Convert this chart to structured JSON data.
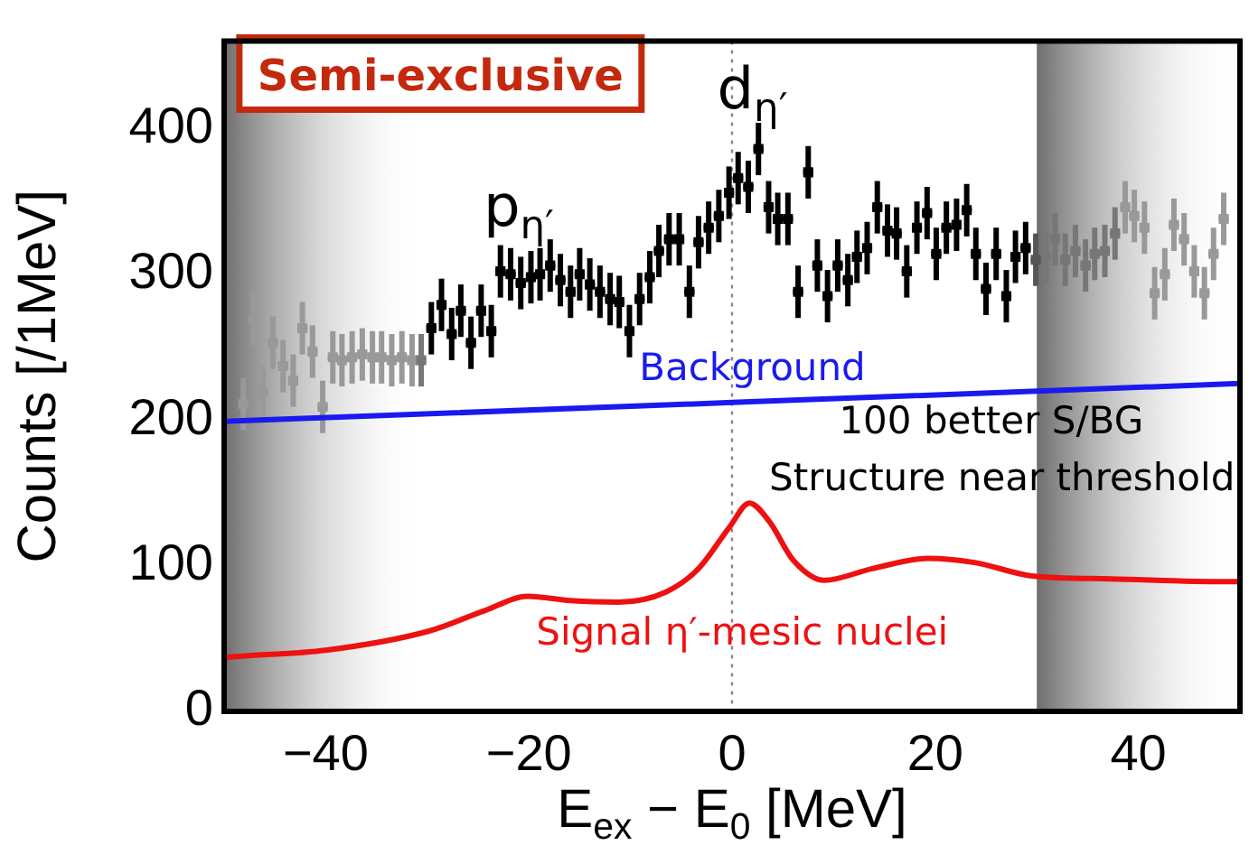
{
  "chart_data": {
    "type": "scatter",
    "xlabel": "E$_{ex}$ − E$_{0}$ [MeV]",
    "ylabel": "Counts [/1MeV]",
    "xlim": [
      -50,
      50
    ],
    "xticks": [
      -40,
      -20,
      0,
      20,
      40
    ],
    "ylim": [
      0,
      460
    ],
    "yticks": [
      0,
      100,
      200,
      300,
      400
    ],
    "grid": false,
    "legend": false,
    "series": [
      {
        "type": "scatter",
        "marker": "square",
        "x": [
          -48.1,
          -47.1,
          -46.2,
          -45.2,
          -44.2,
          -43.2,
          -42.3,
          -41.3,
          -40.3,
          -39.3,
          -38.4,
          -37.4,
          -36.4,
          -35.4,
          -34.5,
          -33.5,
          -32.5,
          -31.5,
          -30.6,
          -29.6,
          -28.6,
          -27.6,
          -26.7,
          -25.7,
          -24.7,
          -23.7,
          -22.8,
          -21.8,
          -20.8,
          -19.8,
          -18.9,
          -17.9,
          -16.9,
          -15.9,
          -15.0,
          -14.0,
          -13.0,
          -12.0,
          -11.1,
          -10.1,
          -9.1,
          -8.1,
          -7.2,
          -6.2,
          -5.2,
          -4.2,
          -3.3,
          -2.3,
          -1.3,
          -0.3,
          0.6,
          1.6,
          2.6,
          3.6,
          4.5,
          5.5,
          6.5,
          7.5,
          8.4,
          9.4,
          10.4,
          11.4,
          12.3,
          13.3,
          14.3,
          15.3,
          16.2,
          17.2,
          18.2,
          19.2,
          20.1,
          21.1,
          22.1,
          23.1,
          24.0,
          25.0,
          26.0,
          27.0,
          27.9,
          28.9,
          29.9,
          30.9,
          31.8,
          32.8,
          33.8,
          34.8,
          35.7,
          36.7,
          37.7,
          38.7,
          39.6,
          40.6,
          41.6,
          42.6,
          43.5,
          44.5,
          45.5,
          46.5,
          47.4,
          48.4
        ],
        "values": [
          211,
          269,
          219,
          253,
          237,
          227,
          263,
          247,
          209,
          243,
          241,
          243,
          245,
          243,
          243,
          241,
          243,
          241,
          241,
          263,
          279,
          259,
          275,
          253,
          275,
          261,
          302,
          300,
          294,
          298,
          300,
          306,
          296,
          288,
          300,
          293,
          288,
          283,
          281,
          261,
          283,
          298,
          316,
          324,
          324,
          288,
          322,
          332,
          340,
          356,
          366,
          360,
          386,
          346,
          338,
          338,
          288,
          370,
          306,
          285,
          306,
          296,
          312,
          318,
          346,
          330,
          328,
          302,
          332,
          342,
          314,
          332,
          334,
          344,
          314,
          290,
          314,
          285,
          312,
          318,
          310,
          312,
          324,
          310,
          316,
          306,
          314,
          316,
          328,
          346,
          340,
          332,
          287,
          300,
          334,
          324,
          302,
          287,
          314,
          338
        ],
        "errors": [
          18,
          18,
          18,
          18,
          18,
          18,
          18,
          18,
          18,
          18,
          18,
          18,
          18,
          18,
          18,
          18,
          18,
          18,
          18,
          18,
          18,
          18,
          18,
          18,
          18,
          18,
          18,
          18,
          18,
          18,
          18,
          18,
          18,
          18,
          18,
          18,
          18,
          18,
          18,
          18,
          18,
          18,
          18,
          18,
          18,
          18,
          18,
          18,
          18,
          18,
          18,
          18,
          18,
          18,
          18,
          18,
          18,
          18,
          18,
          18,
          18,
          18,
          18,
          18,
          18,
          18,
          18,
          18,
          18,
          18,
          18,
          18,
          18,
          18,
          18,
          18,
          18,
          18,
          18,
          18,
          18,
          18,
          18,
          18,
          18,
          18,
          18,
          18,
          18,
          18,
          18,
          18,
          18,
          18,
          18,
          18,
          18,
          18,
          18,
          18
        ],
        "xerrors": [
          0.5,
          0.5,
          0.5,
          0.5,
          0.5,
          0.5,
          0.5,
          0.5,
          0.5,
          0.5,
          0.5,
          0.5,
          0.5,
          0.5,
          0.5,
          0.5,
          0.5,
          0.5,
          0.5,
          0.5,
          0.5,
          0.5,
          0.5,
          0.5,
          0.5,
          0.5,
          0.5,
          0.5,
          0.5,
          0.5,
          0.5,
          0.5,
          0.5,
          0.5,
          0.5,
          0.5,
          0.5,
          0.5,
          0.5,
          0.5,
          0.5,
          0.5,
          0.5,
          0.5,
          0.5,
          0.5,
          0.5,
          0.5,
          0.5,
          0.5,
          0.5,
          0.5,
          0.5,
          0.5,
          0.5,
          0.5,
          0.5,
          0.5,
          0.5,
          0.5,
          0.5,
          0.5,
          0.5,
          0.5,
          0.5,
          0.5,
          0.5,
          0.5,
          0.5,
          0.5,
          0.5,
          0.5,
          0.5,
          0.5,
          0.5,
          0.5,
          0.5,
          0.5,
          0.5,
          0.5,
          0.5,
          0.5,
          0.5,
          0.5,
          0.5,
          0.5,
          0.5,
          0.5,
          0.5,
          0.5,
          0.5,
          0.5,
          0.5,
          0.5,
          0.5,
          0.5,
          0.5,
          0.5,
          0.5,
          0.5
        ],
        "colors": [
          "#999999",
          "#999999",
          "#999999",
          "#999999",
          "#999999",
          "#999999",
          "#999999",
          "#999999",
          "#999999",
          "#999999",
          "#999999",
          "#999999",
          "#999999",
          "#999999",
          "#999999",
          "#999999",
          "#999999",
          "#999999",
          "#777777",
          "#000000",
          "#000000",
          "#000000",
          "#000000",
          "#000000",
          "#000000",
          "#000000",
          "#000000",
          "#000000",
          "#000000",
          "#000000",
          "#000000",
          "#000000",
          "#000000",
          "#000000",
          "#000000",
          "#000000",
          "#000000",
          "#000000",
          "#000000",
          "#000000",
          "#000000",
          "#000000",
          "#000000",
          "#000000",
          "#000000",
          "#000000",
          "#000000",
          "#000000",
          "#000000",
          "#000000",
          "#000000",
          "#000000",
          "#000000",
          "#000000",
          "#000000",
          "#000000",
          "#000000",
          "#000000",
          "#000000",
          "#000000",
          "#000000",
          "#000000",
          "#000000",
          "#000000",
          "#000000",
          "#000000",
          "#000000",
          "#000000",
          "#000000",
          "#000000",
          "#000000",
          "#000000",
          "#000000",
          "#000000",
          "#000000",
          "#000000",
          "#000000",
          "#000000",
          "#000000",
          "#000000",
          "#555555",
          "#777777",
          "#777777",
          "#777777",
          "#777777",
          "#777777",
          "#777777",
          "#777777",
          "#777777",
          "#999999",
          "#999999",
          "#999999",
          "#999999",
          "#999999",
          "#999999",
          "#999999",
          "#999999",
          "#999999",
          "#999999",
          "#999999"
        ]
      },
      {
        "type": "line",
        "name": "Background",
        "color": "#1a1aee",
        "marker": "none",
        "x": [
          -50,
          50
        ],
        "values": [
          199,
          225
        ]
      },
      {
        "type": "line",
        "name": "Signal η′-mesic nuclei",
        "color": "#ee1111",
        "marker": "none",
        "x": [
          -50,
          -48.2,
          -40,
          -29.9,
          -24.4,
          -20.1,
          -15.9,
          -11.2,
          -6.5,
          -3.3,
          -0.2,
          1.7,
          3.7,
          6,
          9.1,
          13.8,
          19.3,
          24,
          29.5,
          37.3,
          48.6,
          50
        ],
        "values": [
          37,
          38,
          42,
          55,
          69,
          79,
          76,
          75,
          82,
          98,
          127,
          143,
          130,
          104,
          90,
          98,
          105,
          102,
          93,
          91,
          89,
          89
        ]
      }
    ],
    "ref_lines": [
      {
        "axis": "x",
        "value": 0,
        "color": "#888888",
        "line_style": "dotted"
      }
    ],
    "bands": [
      {
        "axis": "x",
        "from": -50,
        "to": -30,
        "color": "#6e6e6e"
      },
      {
        "axis": "x",
        "from": 30,
        "to": 50,
        "color": "#6e6e6e"
      }
    ],
    "annotations": [
      "Semi-exclusive",
      "p$_{η′}$",
      "d$_{η′}$",
      "100 better S/BG",
      "Structure near threshold"
    ]
  }
}
